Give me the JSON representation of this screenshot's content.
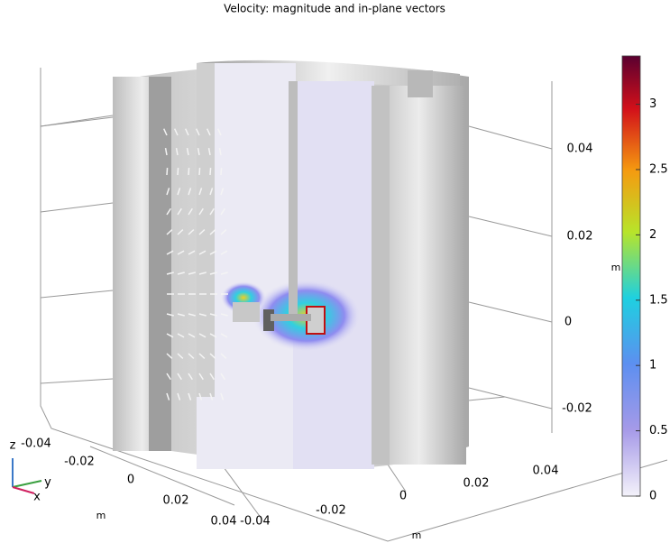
{
  "title": "Velocity: magnitude and in-plane vectors",
  "x_axis": {
    "labels": [
      "-0.04",
      "-0.02",
      "0",
      "0.02",
      "0.04"
    ],
    "unit": "m"
  },
  "y_axis": {
    "labels": [
      "-0.04",
      "-0.02",
      "0",
      "0.02",
      "0.04"
    ],
    "unit": "m"
  },
  "z_axis": {
    "labels": [
      "0.04",
      "0.02",
      "0",
      "-0.02"
    ]
  },
  "colorbar": {
    "range": [
      0,
      3.37
    ],
    "ticks": [
      0,
      0.5,
      1,
      1.5,
      2,
      2.5,
      3
    ],
    "unit": "m"
  },
  "triad": {
    "x": "x",
    "y": "y",
    "z": "z"
  }
}
